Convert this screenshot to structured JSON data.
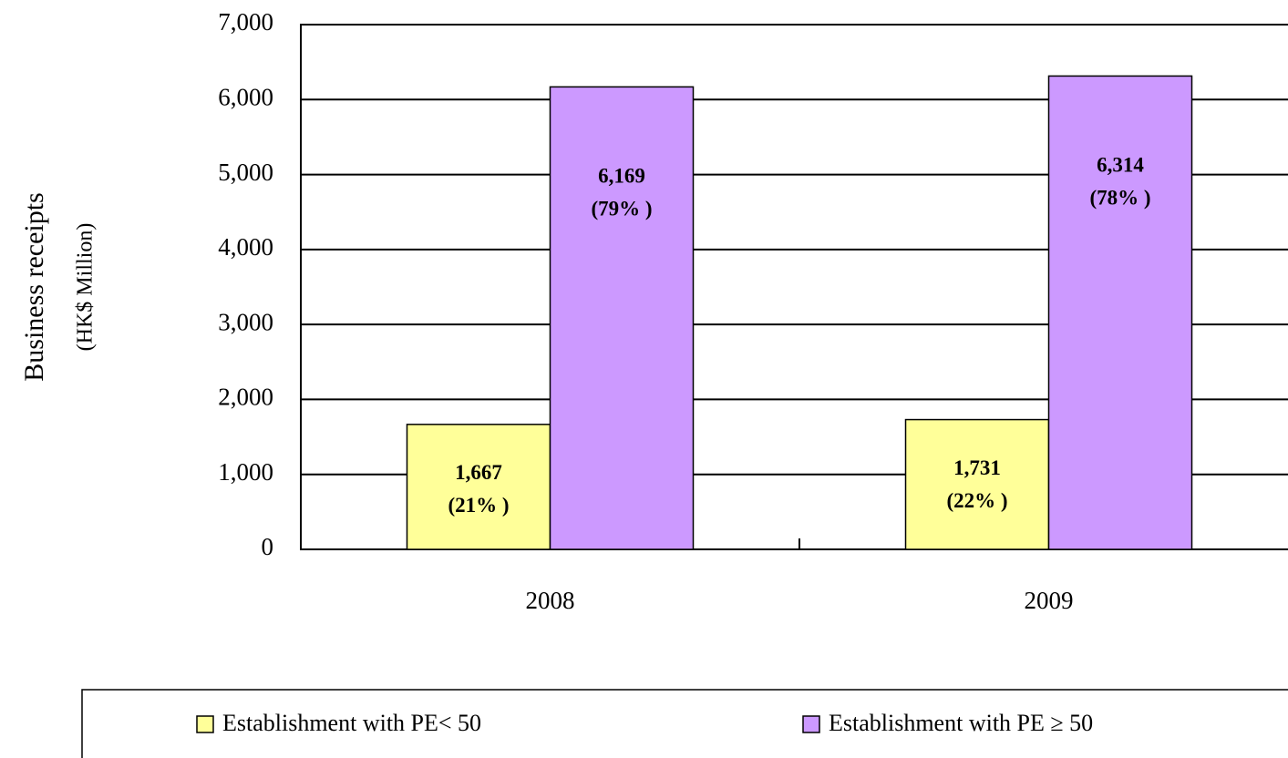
{
  "chart_data": {
    "type": "bar",
    "y_label": [
      "Business receipts",
      "(HK$ Million)"
    ],
    "categories": [
      "2008",
      "2009"
    ],
    "series": [
      {
        "name": "Establishment with PE< 50",
        "color": "#ffff99",
        "values": [
          1667,
          1731
        ],
        "value_labels": [
          "1,667",
          "1,731"
        ],
        "share_labels": [
          "(21% )",
          "(22% )"
        ]
      },
      {
        "name": "Establishment with PE ≥ 50",
        "color": "#cc99ff",
        "values": [
          6169,
          6314
        ],
        "value_labels": [
          "6,169",
          "6,314"
        ],
        "share_labels": [
          "(79% )",
          "(78% )"
        ]
      }
    ],
    "ylim": [
      0,
      7000
    ],
    "yticks": [
      0,
      {
        "value": 1000,
        "label": "1,000"
      },
      {
        "value": 2000,
        "label": "2,000"
      },
      {
        "value": 3000,
        "label": "3,000"
      },
      {
        "value": 4000,
        "label": "4,000"
      },
      {
        "value": 5000,
        "label": "5,000"
      },
      {
        "value": 6000,
        "label": "6,000"
      },
      {
        "value": 7000,
        "label": "7,000"
      }
    ],
    "grid": true
  }
}
